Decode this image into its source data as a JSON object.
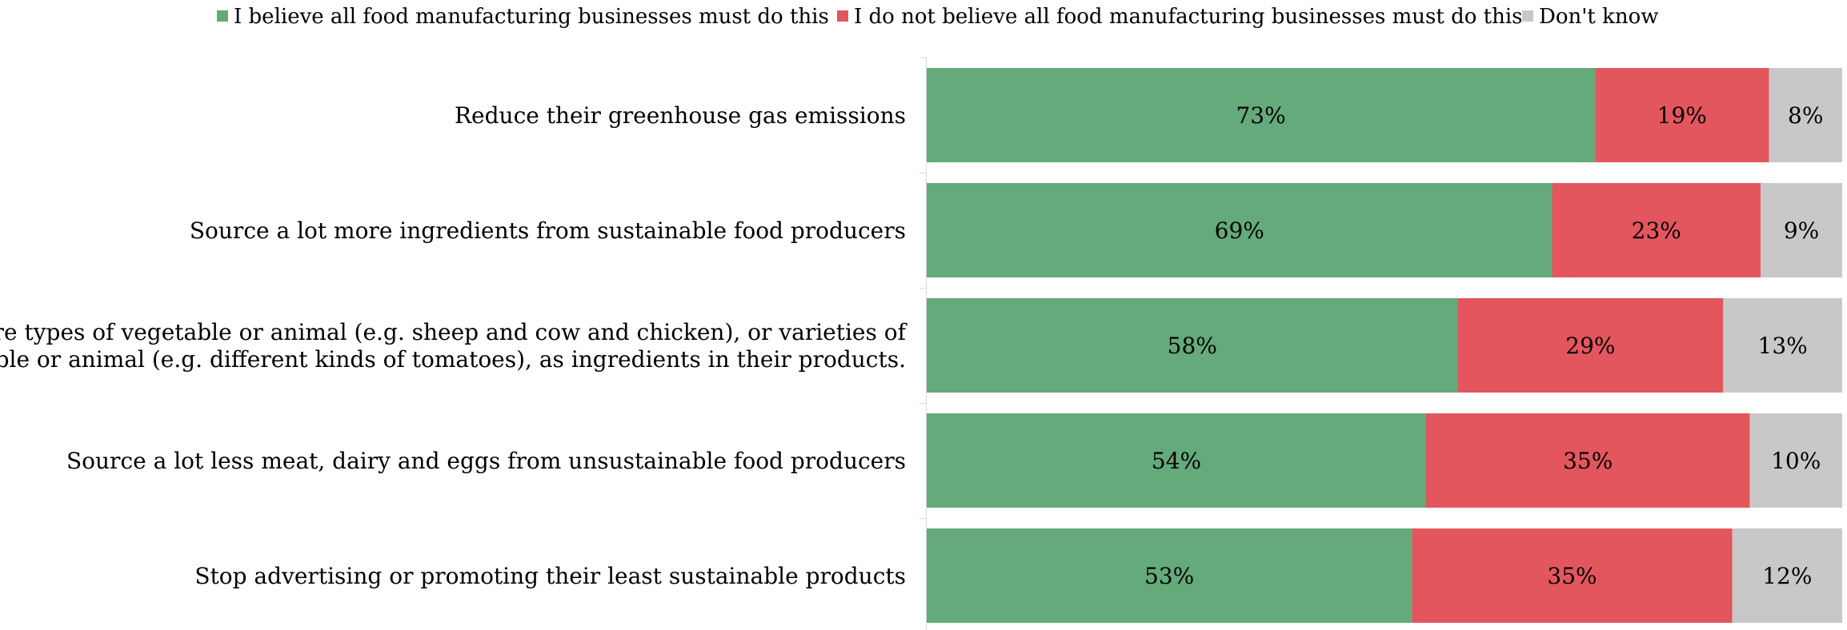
{
  "chart_data": {
    "type": "bar",
    "orientation": "horizontal",
    "stacked": true,
    "percent": true,
    "categories": [
      [
        "Reduce their greenhouse gas emissions"
      ],
      [
        "Source a lot more ingredients from sustainable food producers"
      ],
      [
        "Use more types of vegetable or animal (e.g. sheep and cow and chicken), or varieties of",
        "vegetable or animal (e.g. different kinds of tomatoes), as ingredients in their products."
      ],
      [
        "Source a lot less meat, dairy and eggs from unsustainable food producers"
      ],
      [
        "Stop advertising or promoting their least sustainable products"
      ]
    ],
    "series": [
      {
        "name": "I believe all food manufacturing businesses must do this",
        "color": "#64aa7a",
        "values": [
          73,
          69,
          58,
          54,
          53
        ],
        "labels": [
          "73%",
          "69%",
          "58%",
          "54%",
          "53%"
        ]
      },
      {
        "name": "I do not believe all food manufacturing businesses must do this",
        "color": "#e3565e",
        "values": [
          19,
          23,
          29,
          35,
          35
        ],
        "labels": [
          "19%",
          "23%",
          "29%",
          "35%",
          "35%"
        ]
      },
      {
        "name": "Don't know",
        "color": "#c8c8c8",
        "values": [
          8,
          9,
          13,
          10,
          12
        ],
        "labels": [
          "8%",
          "9%",
          "13%",
          "10%",
          "12%"
        ]
      }
    ],
    "legend_position": "top",
    "grid": false
  }
}
